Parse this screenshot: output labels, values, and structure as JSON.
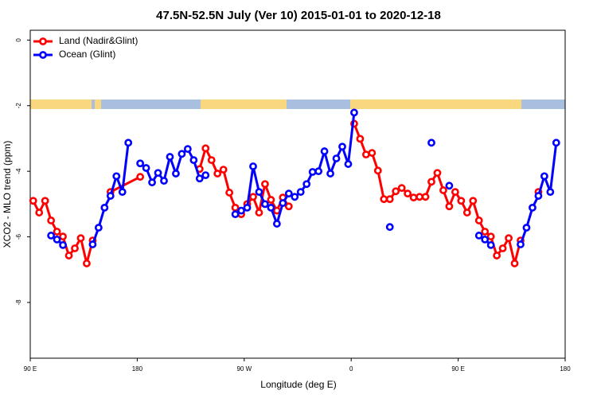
{
  "chart_data": {
    "type": "line",
    "title": "47.5N-52.5N July (Ver 10)   2015-01-01 to 2020-12-18",
    "x_label": "Longitude (deg E)",
    "y_label": "XCO2 - MLO trend (ppm)",
    "xlim": [
      90,
      540
    ],
    "ylim": [
      -9.7,
      0.3
    ],
    "xticks": [
      {
        "value": 90,
        "label": "90 E"
      },
      {
        "value": 180,
        "label": "180"
      },
      {
        "value": 270,
        "label": "90 W"
      },
      {
        "value": 360,
        "label": "0"
      },
      {
        "value": 450,
        "label": "90 E"
      },
      {
        "value": 540,
        "label": "180"
      }
    ],
    "yticks": [
      0,
      -2,
      -4,
      -6,
      -8
    ],
    "legend": "topleft",
    "series": [
      {
        "name": "Land (Nadir&Glint)",
        "color": "#ff0000",
        "x": [
          92.5,
          97.5,
          102.5,
          107.5,
          112.5,
          117.5,
          122.5,
          127.5,
          132.5,
          137.5,
          142.5,
          147.5,
          157.5,
          182.5,
          187.5,
          232.5,
          237.5,
          242.5,
          247.5,
          252.5,
          257.5,
          262.5,
          267.5,
          272.5,
          277.5,
          282.5,
          287.5,
          292.5,
          297.5,
          302.5,
          307.5,
          312.5,
          362.5,
          367.5,
          372.5,
          377.5,
          382.5,
          387.5,
          392.5,
          397.5,
          402.5,
          407.5,
          412.5,
          417.5,
          422.5,
          427.5,
          432.5,
          437.5,
          442.5,
          447.5,
          452.5,
          457.5,
          462.5,
          467.5,
          472.5,
          477.5,
          482.5,
          487.5,
          492.5,
          497.5,
          502.5,
          507.5,
          517.5
        ],
        "values": [
          -4.9,
          -5.26,
          -4.9,
          -5.5,
          -5.84,
          -5.99,
          -6.57,
          -6.35,
          -6.04,
          -6.81,
          -6.11,
          null,
          -4.63,
          -4.17,
          null,
          -3.93,
          -3.3,
          -3.66,
          -4.07,
          -3.95,
          -4.65,
          -5.11,
          -5.31,
          -5.0,
          -4.78,
          -5.26,
          -4.39,
          -4.87,
          -5.2,
          -4.8,
          -5.07,
          null,
          -2.55,
          -3.01,
          -3.49,
          -3.44,
          -3.98,
          -4.85,
          -4.85,
          -4.61,
          -4.51,
          -4.68,
          -4.8,
          -4.78,
          -4.78,
          -4.32,
          -4.05,
          -4.58,
          -5.07,
          -4.63,
          -4.9,
          -5.26,
          -4.9,
          -5.5,
          -5.84,
          -5.99,
          -6.57,
          -6.35,
          -6.04,
          -6.81,
          -6.11,
          null,
          -4.63
        ]
      },
      {
        "name": "Ocean (Glint)",
        "color": "#0000ff",
        "x": [
          107.5,
          112.5,
          117.5,
          122.5,
          142.5,
          147.5,
          152.5,
          157.5,
          162.5,
          167.5,
          172.5,
          177.5,
          182.5,
          187.5,
          192.5,
          197.5,
          202.5,
          207.5,
          212.5,
          217.5,
          222.5,
          227.5,
          232.5,
          237.5,
          242.5,
          262.5,
          267.5,
          272.5,
          277.5,
          282.5,
          287.5,
          292.5,
          297.5,
          302.5,
          307.5,
          312.5,
          317.5,
          322.5,
          327.5,
          332.5,
          337.5,
          342.5,
          347.5,
          352.5,
          357.5,
          362.5,
          367.5,
          392.5,
          397.5,
          427.5,
          432.5,
          442.5,
          447.5,
          467.5,
          472.5,
          477.5,
          482.5,
          502.5,
          507.5,
          512.5,
          517.5,
          522.5,
          527.5,
          532.5
        ],
        "values": [
          -5.96,
          -6.08,
          -6.25,
          null,
          -6.23,
          -5.72,
          -5.11,
          -4.75,
          -4.15,
          -4.63,
          -3.13,
          null,
          -3.76,
          -3.9,
          -4.34,
          -4.05,
          -4.29,
          -3.56,
          -4.07,
          -3.47,
          -3.32,
          -3.66,
          -4.22,
          -4.12,
          null,
          -5.31,
          -5.2,
          -5.11,
          -3.85,
          -4.63,
          -5.0,
          -5.11,
          -5.6,
          -4.97,
          -4.68,
          -4.78,
          -4.63,
          -4.39,
          -4.02,
          -4.0,
          -3.39,
          -4.07,
          -3.61,
          -3.25,
          -3.78,
          -2.21,
          null,
          -5.7,
          null,
          -3.13,
          null,
          -4.44,
          null,
          -5.96,
          -6.08,
          -6.25,
          null,
          -6.23,
          -5.72,
          -5.11,
          -4.75,
          -4.15,
          -4.63,
          -3.13
        ]
      }
    ]
  }
}
